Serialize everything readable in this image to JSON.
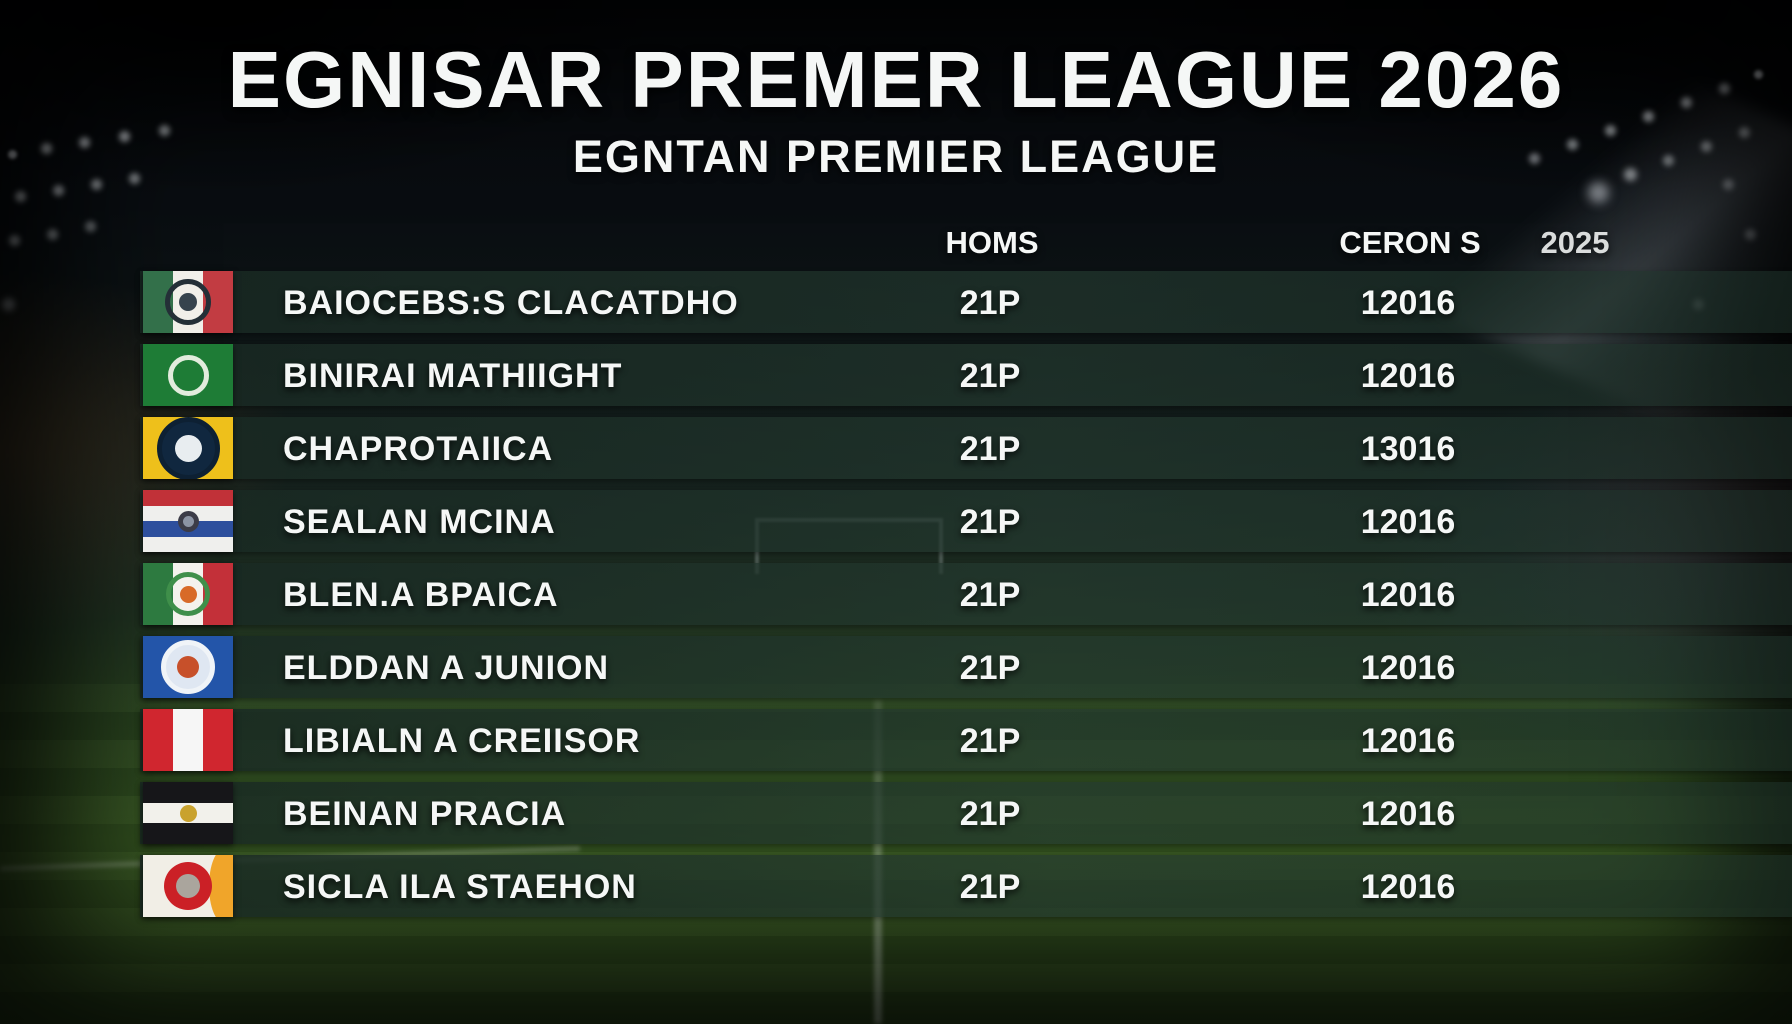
{
  "chart_data": {
    "type": "table",
    "title": "EGNISAR PREMER LEAGUE 2026",
    "subtitle": "EGNTAN PREMIER LEAGUE",
    "columns": [
      "HOMS",
      "CERON S",
      "2025"
    ],
    "rows": [
      [
        "BAIOCEBS:S CLACATDHO",
        "21P",
        "12016"
      ],
      [
        "BINIRAI MATHIIGHT",
        "21P",
        "12016"
      ],
      [
        "CHAPROTAIICA",
        "21P",
        "13016"
      ],
      [
        "SEALAN MCINA",
        "21P",
        "12016"
      ],
      [
        "BLEN.A BPAICA",
        "21P",
        "12016"
      ],
      [
        "ELDDAN A JUNION",
        "21P",
        "12016"
      ],
      [
        "LIBIALN A CREIISOR",
        "21P",
        "12016"
      ],
      [
        "BEINAN PRACIA",
        "21P",
        "12016"
      ],
      [
        "SICLA ILA STAEHON",
        "21P",
        "12016"
      ]
    ],
    "legend_position": "none",
    "grid": false
  },
  "header": {
    "title": "EGNISAR PREMER LEAGUE 2026",
    "subtitle": "EGNTAN PREMIER LEAGUE"
  },
  "columns": {
    "homs": "HOMS",
    "ceron": "CERON S",
    "year": "2025"
  },
  "teams": [
    {
      "name": "BAIOCEBS:S CLACATDHO",
      "homs": "21P",
      "ceron": "12016",
      "flag_name": "green-white-red-vertical-tricolor-dark-crest-flag",
      "flag": {
        "dir": "v",
        "stripes": [
          "#33704a",
          "#f1efe9",
          "#c23c42"
        ],
        "emblem": {
          "ring": "#242f37",
          "size": 0.64,
          "inner": "#36434d"
        }
      }
    },
    {
      "name": "BINIRAI MATHIIGHT",
      "homs": "21P",
      "ceron": "12016",
      "flag_name": "green-field-white-ring-flag",
      "flag": {
        "dir": "v",
        "stripes": [
          "#1e7c36"
        ],
        "emblem": {
          "ring": "#e2ecdd",
          "size": 0.55
        }
      }
    },
    {
      "name": "CHAPROTAIICA",
      "homs": "21P",
      "ceron": "13016",
      "flag_name": "yellow-field-navy-roundel-flag",
      "flag": {
        "dir": "v",
        "stripes": [
          "#eec01b"
        ],
        "emblem": {
          "bg": "#10273f",
          "ring": "#0d2033",
          "size": 0.95,
          "inner": "#e8edf0"
        }
      }
    },
    {
      "name": "SEALAN MCINA",
      "homs": "21P",
      "ceron": "12016",
      "flag_name": "red-white-blue-horizontal-stripes-crest-flag",
      "flag": {
        "dir": "h",
        "stripes": [
          "#c13138",
          "#efefed",
          "#2d4f9d",
          "#efefed"
        ],
        "emblem": {
          "bg": "#3c3c48",
          "size": 0.38,
          "inner": "#8c94a4"
        }
      }
    },
    {
      "name": "BLEN.A BPAICA",
      "homs": "21P",
      "ceron": "12016",
      "flag_name": "green-white-red-vertical-tricolor-eagle-flag",
      "flag": {
        "dir": "v",
        "stripes": [
          "#2d7a40",
          "#f4f2ed",
          "#c33039"
        ],
        "emblem": {
          "ring": "#3f8f4a",
          "size": 0.6,
          "inner": "#d86a28"
        }
      }
    },
    {
      "name": "ELDDAN A JUNION",
      "homs": "21P",
      "ceron": "12016",
      "flag_name": "blue-field-white-roundel-red-bird-flag",
      "flag": {
        "dir": "v",
        "stripes": [
          "#2355a9"
        ],
        "emblem": {
          "bg": "#dfe7f2",
          "ring": "#f0f4f8",
          "size": 0.78,
          "inner": "#c7502a"
        }
      }
    },
    {
      "name": "LIBIALN A CREIISOR",
      "homs": "21P",
      "ceron": "12016",
      "flag_name": "red-white-red-vertical-tricolor-flag",
      "flag": {
        "dir": "v",
        "stripes": [
          "#d0262f",
          "#f6f6f6",
          "#d0262f"
        ]
      }
    },
    {
      "name": "BEINAN PRACIA",
      "homs": "21P",
      "ceron": "12016",
      "flag_name": "black-white-black-horizontal-gold-crest-flag",
      "flag": {
        "dir": "h",
        "stripes": [
          "#161619",
          "#f2f1eb",
          "#161619"
        ],
        "emblem": {
          "bg": "#c9a22e",
          "size": 0.3
        }
      }
    },
    {
      "name": "SICLA ILA STAEHON",
      "homs": "21P",
      "ceron": "12016",
      "flag_name": "white-field-red-crest-orange-band-flag",
      "flag": {
        "dir": "v",
        "stripes": [
          "#f1eee6"
        ],
        "accent": "#f0a52a",
        "emblem": {
          "bg": "#cb2026",
          "size": 0.85,
          "inner": "#aaa59d"
        }
      }
    }
  ],
  "colors": {
    "row_stripe": "rgba(24,40,34,0.85)",
    "text": "#f5f7f6",
    "pitch_green": "#335120",
    "night_sky": "#06080b"
  }
}
